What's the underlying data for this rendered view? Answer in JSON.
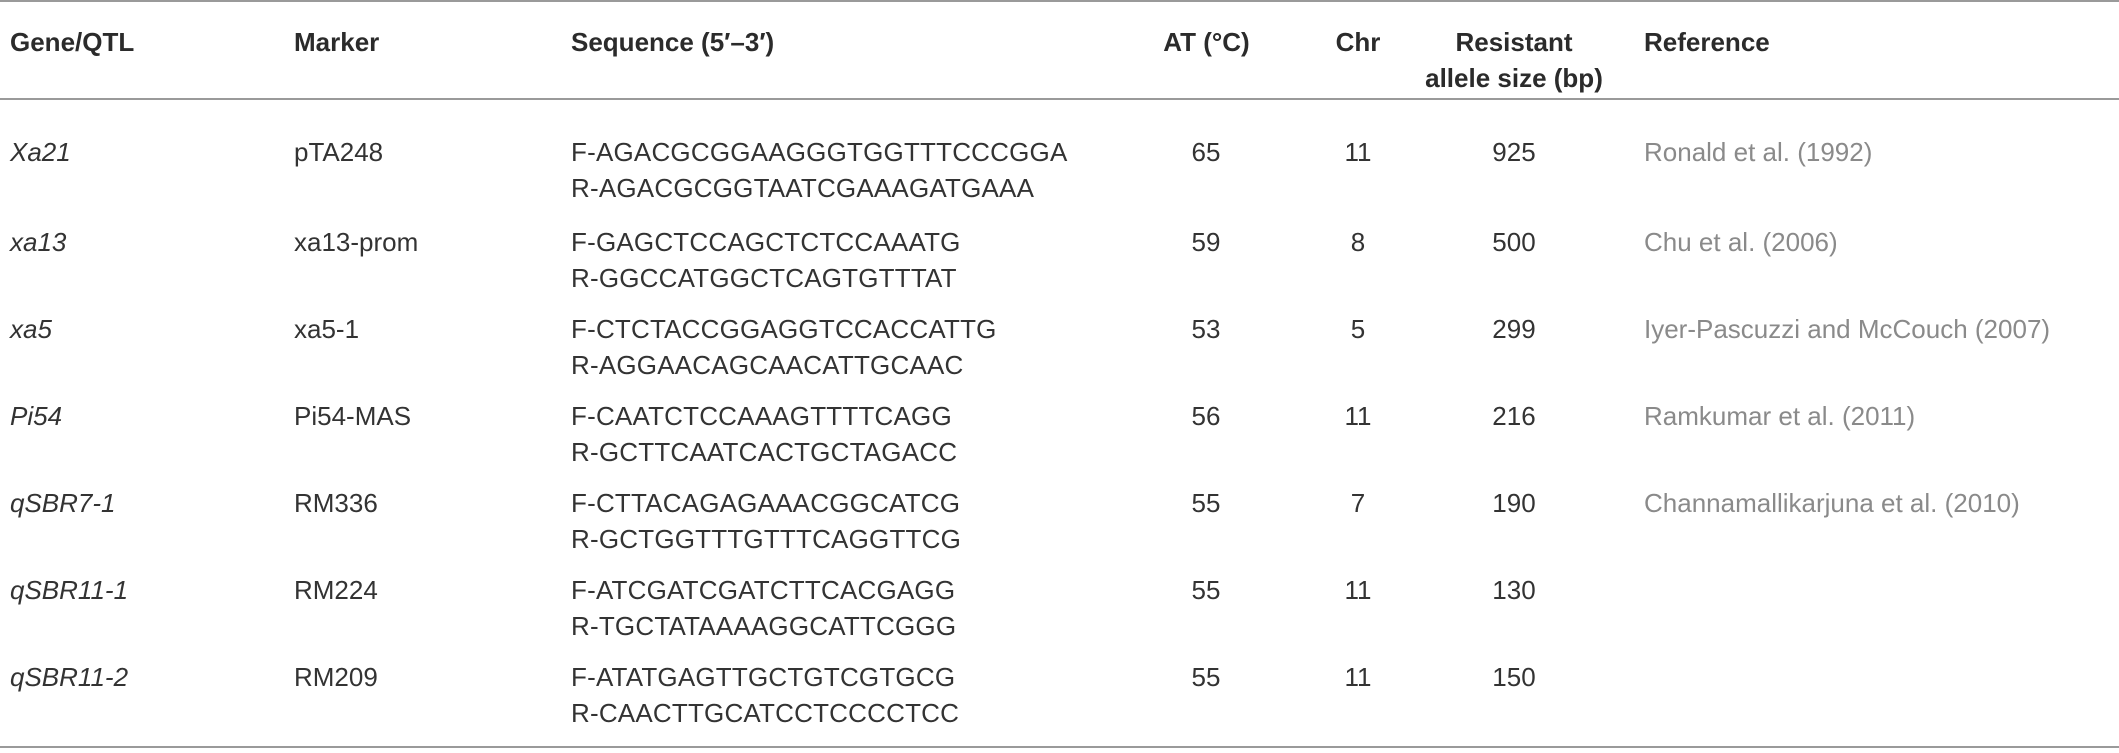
{
  "table": {
    "headers": {
      "gene": "Gene/QTL",
      "marker": "Marker",
      "sequence": "Sequence (5′–3′)",
      "at": "AT (°C)",
      "chr": "Chr",
      "size_line1": "Resistant",
      "size_line2": "allele size (bp)",
      "reference": "Reference"
    },
    "rows": [
      {
        "gene": "Xa21",
        "marker": "pTA248",
        "forward": "F-AGACGCGGAAGGGTGGTTTCCCGGA",
        "reverse": "R-AGACGCGGTAATCGAAAGATGAAA",
        "at": "65",
        "chr": "11",
        "size": "925",
        "reference": "Ronald et al. (1992)"
      },
      {
        "gene": "xa13",
        "marker": "xa13-prom",
        "forward": "F-GAGCTCCAGCTCTCCAAATG",
        "reverse": "R-GGCCATGGCTCAGTGTTTAT",
        "at": "59",
        "chr": "8",
        "size": "500",
        "reference": "Chu et al. (2006)"
      },
      {
        "gene": "xa5",
        "marker": "xa5-1",
        "forward": "F-CTCTACCGGAGGTCCACCATTG",
        "reverse": "R-AGGAACAGCAACATTGCAAC",
        "at": "53",
        "chr": "5",
        "size": "299",
        "reference": "Iyer-Pascuzzi and McCouch (2007)"
      },
      {
        "gene": "Pi54",
        "marker": "Pi54-MAS",
        "forward": "F-CAATCTCCAAAGTTTTCAGG",
        "reverse": "R-GCTTCAATCACTGCTAGACC",
        "at": "56",
        "chr": "11",
        "size": "216",
        "reference": "Ramkumar et al. (2011)"
      },
      {
        "gene": "qSBR7-1",
        "marker": "RM336",
        "forward": "F-CTTACAGAGAAACGGCATCG",
        "reverse": "R-GCTGGTTTGTTTCAGGTTCG",
        "at": "55",
        "chr": "7",
        "size": "190",
        "reference": "Channamallikarjuna et al. (2010)"
      },
      {
        "gene": "qSBR11-1",
        "marker": "RM224",
        "forward": "F-ATCGATCGATCTTCACGAGG",
        "reverse": "R-TGCTATAAAAGGCATTCGGG",
        "at": "55",
        "chr": "11",
        "size": "130",
        "reference": ""
      },
      {
        "gene": "qSBR11-2",
        "marker": "RM209",
        "forward": "F-ATATGAGTTGCTGTCGTGCG",
        "reverse": "R-CAACTTGCATCCTCCCCTCC",
        "at": "55",
        "chr": "11",
        "size": "150",
        "reference": ""
      }
    ]
  },
  "colors": {
    "text": "#333333",
    "header_text": "#2b2b2b",
    "reference_text": "#8a8a8a",
    "rule": "#9a9a9a"
  }
}
